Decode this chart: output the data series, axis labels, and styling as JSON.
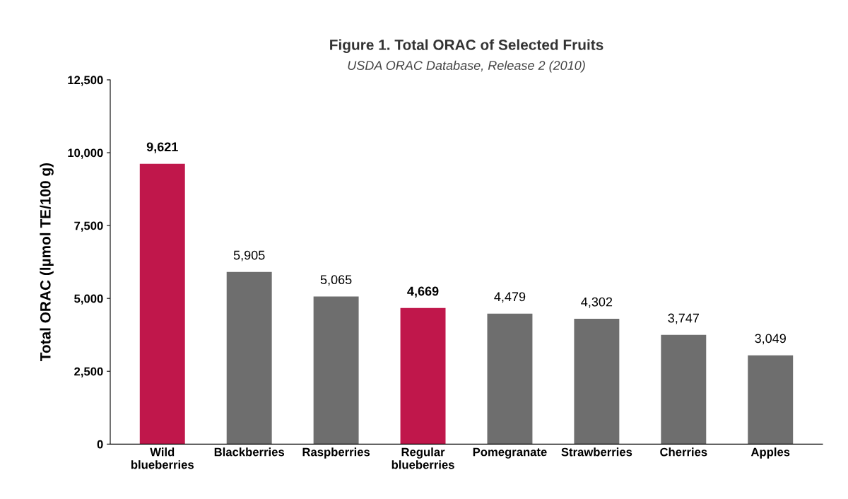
{
  "chart_data": {
    "type": "bar",
    "title": "Figure 1. Total ORAC of Selected Fruits",
    "subtitle": "USDA ORAC Database, Release 2 (2010)",
    "ylabel": "Total ORAC (lµmol TE/100 g)",
    "categories": [
      "Wild\nblueberries",
      "Blackberries",
      "Raspberries",
      "Regular\nblueberries",
      "Pomegranate",
      "Strawberries",
      "Cherries",
      "Apples"
    ],
    "values": [
      9621,
      5905,
      5065,
      4669,
      4479,
      4302,
      3747,
      3049
    ],
    "colors": [
      "#c0174b",
      "#6e6e6e",
      "#6e6e6e",
      "#c0174b",
      "#6e6e6e",
      "#6e6e6e",
      "#6e6e6e",
      "#6e6e6e"
    ],
    "value_labels": [
      "9,621",
      "5,905",
      "5,065",
      "4,669",
      "4,479",
      "4,302",
      "3,747",
      "3,049"
    ],
    "ylim": [
      0,
      12500
    ],
    "yticks": [
      {
        "value": 0,
        "label": "0"
      },
      {
        "value": 2500,
        "label": "2,500"
      },
      {
        "value": 5000,
        "label": "5,000"
      },
      {
        "value": 7500,
        "label": "7,500"
      },
      {
        "value": 10000,
        "label": "10,000"
      },
      {
        "value": 12500,
        "label": "12,500"
      }
    ],
    "grid": false,
    "legend": false
  }
}
